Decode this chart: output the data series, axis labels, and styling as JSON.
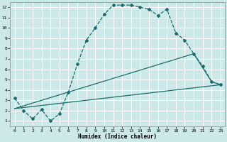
{
  "xlabel": "Humidex (Indice chaleur)",
  "bg_color": "#cce8e8",
  "grid_color": "#ffffff",
  "line_color": "#1a6b6b",
  "xlim": [
    -0.5,
    23.5
  ],
  "ylim": [
    0.5,
    12.5
  ],
  "xticks": [
    0,
    1,
    2,
    3,
    4,
    5,
    6,
    7,
    8,
    9,
    10,
    11,
    12,
    13,
    14,
    15,
    16,
    17,
    18,
    19,
    20,
    21,
    22,
    23
  ],
  "yticks": [
    1,
    2,
    3,
    4,
    5,
    6,
    7,
    8,
    9,
    10,
    11,
    12
  ],
  "line1_x": [
    0,
    1,
    2,
    3,
    4,
    5,
    6,
    7,
    8,
    9,
    10,
    11,
    12,
    13,
    14,
    15,
    16,
    17,
    18,
    19,
    20,
    21,
    22,
    23
  ],
  "line1_y": [
    3.2,
    2.0,
    1.2,
    2.1,
    1.0,
    1.7,
    3.8,
    6.5,
    8.8,
    10.0,
    11.3,
    12.2,
    12.2,
    12.2,
    12.0,
    11.8,
    11.2,
    11.8,
    9.5,
    8.8,
    7.5,
    6.3,
    4.8,
    4.5
  ],
  "line2_x": [
    0,
    23
  ],
  "line2_y": [
    2.2,
    4.5
  ],
  "line3_x": [
    0,
    20,
    22,
    23
  ],
  "line3_y": [
    2.2,
    7.5,
    4.8,
    4.5
  ],
  "marker": "D",
  "markersize": 2.0,
  "linewidth": 0.9,
  "tick_fontsize": 4.5,
  "xlabel_fontsize": 5.5
}
